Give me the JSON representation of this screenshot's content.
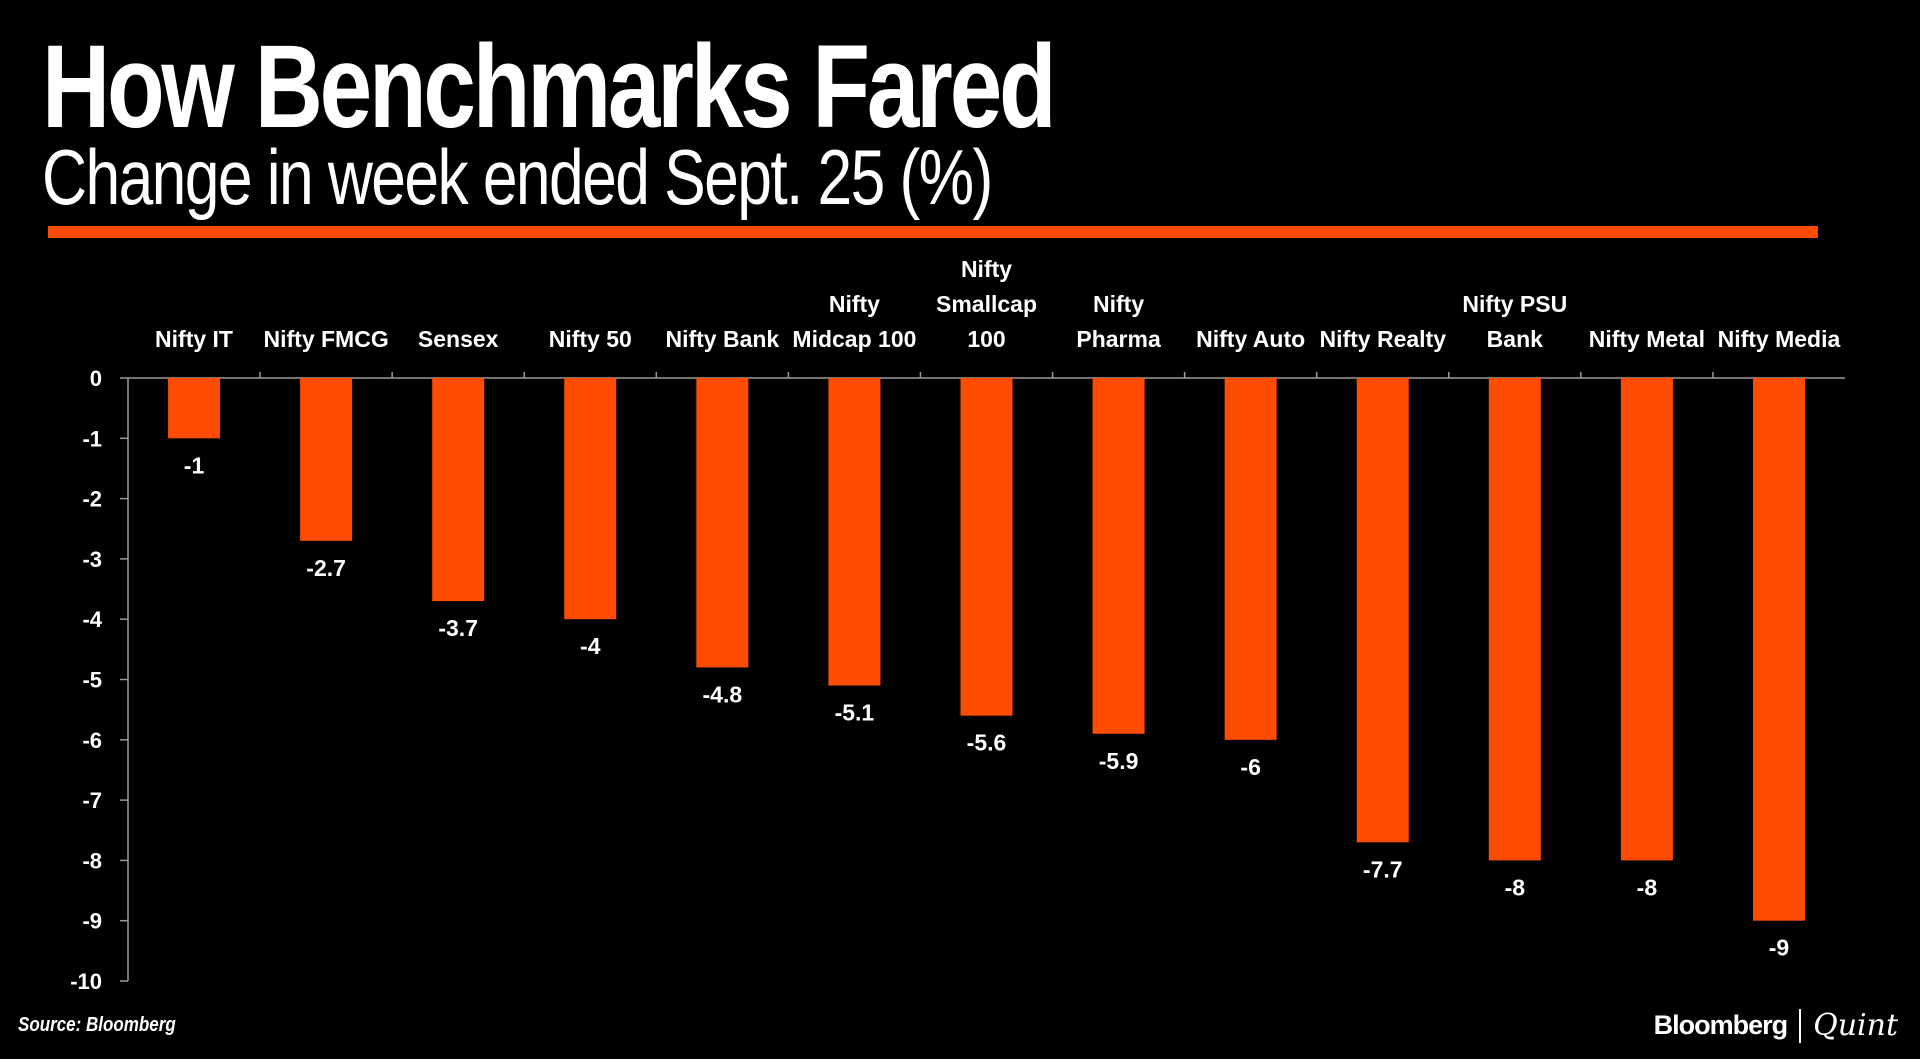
{
  "header": {
    "title": "How Benchmarks Fared",
    "subtitle": "Change in week ended Sept. 25 (%)"
  },
  "footer": {
    "source": "Source: Bloomberg",
    "brand_primary": "Bloomberg",
    "brand_secondary": "Quint"
  },
  "colors": {
    "bar": "#ff4c00",
    "accent_rule": "#ff4c00",
    "background": "#000000",
    "text": "#ffffff"
  },
  "chart_data": {
    "type": "bar",
    "title": "How Benchmarks Fared",
    "subtitle": "Change in week ended Sept. 25 (%)",
    "xlabel": "",
    "ylabel": "",
    "category_axis_position": "top",
    "ylim": [
      -10,
      0
    ],
    "yticks": [
      0,
      -1,
      -2,
      -3,
      -4,
      -5,
      -6,
      -7,
      -8,
      -9,
      -10
    ],
    "grid": false,
    "legend": "none",
    "categories": [
      "Nifty IT",
      "Nifty FMCG",
      "Sensex",
      "Nifty 50",
      "Nifty Bank",
      "Nifty Midcap 100",
      "Nifty Smallcap 100",
      "Nifty Pharma",
      "Nifty Auto",
      "Nifty Realty",
      "Nifty PSU Bank",
      "Nifty Metal",
      "Nifty Media"
    ],
    "category_label_lines": [
      [
        "Nifty IT"
      ],
      [
        "Nifty FMCG"
      ],
      [
        "Sensex"
      ],
      [
        "Nifty 50"
      ],
      [
        "Nifty Bank"
      ],
      [
        "Nifty",
        "Midcap 100"
      ],
      [
        "Nifty",
        "Smallcap",
        "100"
      ],
      [
        "Nifty",
        "Pharma"
      ],
      [
        "Nifty Auto"
      ],
      [
        "Nifty Realty"
      ],
      [
        "Nifty PSU",
        "Bank"
      ],
      [
        "Nifty Metal"
      ],
      [
        "Nifty Media"
      ]
    ],
    "values": [
      -1,
      -2.7,
      -3.7,
      -4,
      -4.8,
      -5.1,
      -5.6,
      -5.9,
      -6,
      -7.7,
      -8,
      -8,
      -9
    ],
    "data_labels": [
      "-1",
      "-2.7",
      "-3.7",
      "-4",
      "-4.8",
      "-5.1",
      "-5.6",
      "-5.9",
      "-6",
      "-7.7",
      "-8",
      "-8",
      "-9"
    ]
  }
}
